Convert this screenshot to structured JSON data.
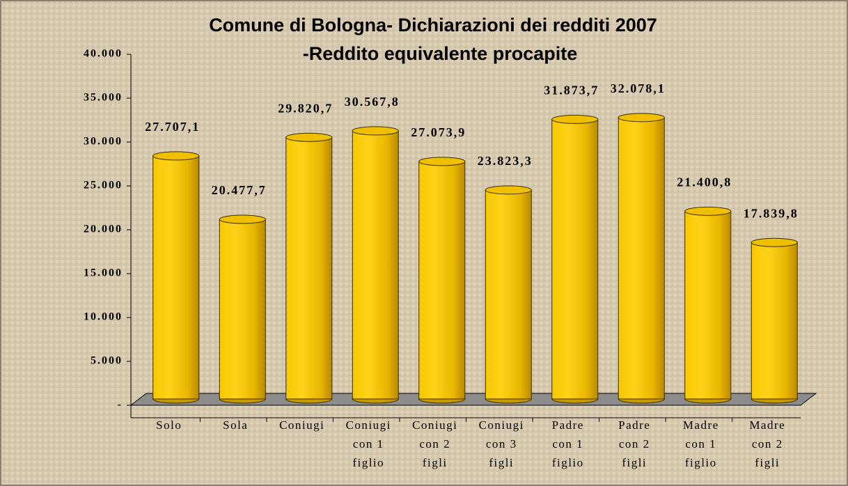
{
  "chart_data": {
    "type": "bar",
    "title": "Comune di Bologna- Dichiarazioni dei redditi 2007",
    "subtitle": "-Reddito equivalente procapite",
    "categories": [
      "Solo",
      "Sola",
      "Coniugi",
      "Coniugi\ncon 1\nfiglio",
      "Coniugi\ncon 2\nfigli",
      "Coniugi\ncon 3\nfigli",
      "Padre\ncon 1\nfiglio",
      "Padre\ncon 2\nfigli",
      "Madre\ncon 1\nfiglio",
      "Madre\ncon 2\nfigli"
    ],
    "values": [
      27707.1,
      20477.7,
      29820.7,
      30567.8,
      27073.9,
      23823.3,
      31873.7,
      32078.1,
      21400.8,
      17839.8
    ],
    "value_labels": [
      "27.707,1",
      "20.477,7",
      "29.820,7",
      "30.567,8",
      "27.073,9",
      "23.823,3",
      "31.873,7",
      "32.078,1",
      "21.400,8",
      "17.839,8"
    ],
    "color": "#f2c200",
    "ylim": [
      0,
      40000
    ],
    "yticks": [
      {
        "value": 0,
        "label": "-"
      },
      {
        "value": 5000,
        "label": "5.000"
      },
      {
        "value": 10000,
        "label": "10.000"
      },
      {
        "value": 15000,
        "label": "15.000"
      },
      {
        "value": 20000,
        "label": "20.000"
      },
      {
        "value": 25000,
        "label": "25.000"
      },
      {
        "value": 30000,
        "label": "30.000"
      },
      {
        "value": 35000,
        "label": "35.000"
      },
      {
        "value": 40000,
        "label": "40.000"
      }
    ]
  }
}
